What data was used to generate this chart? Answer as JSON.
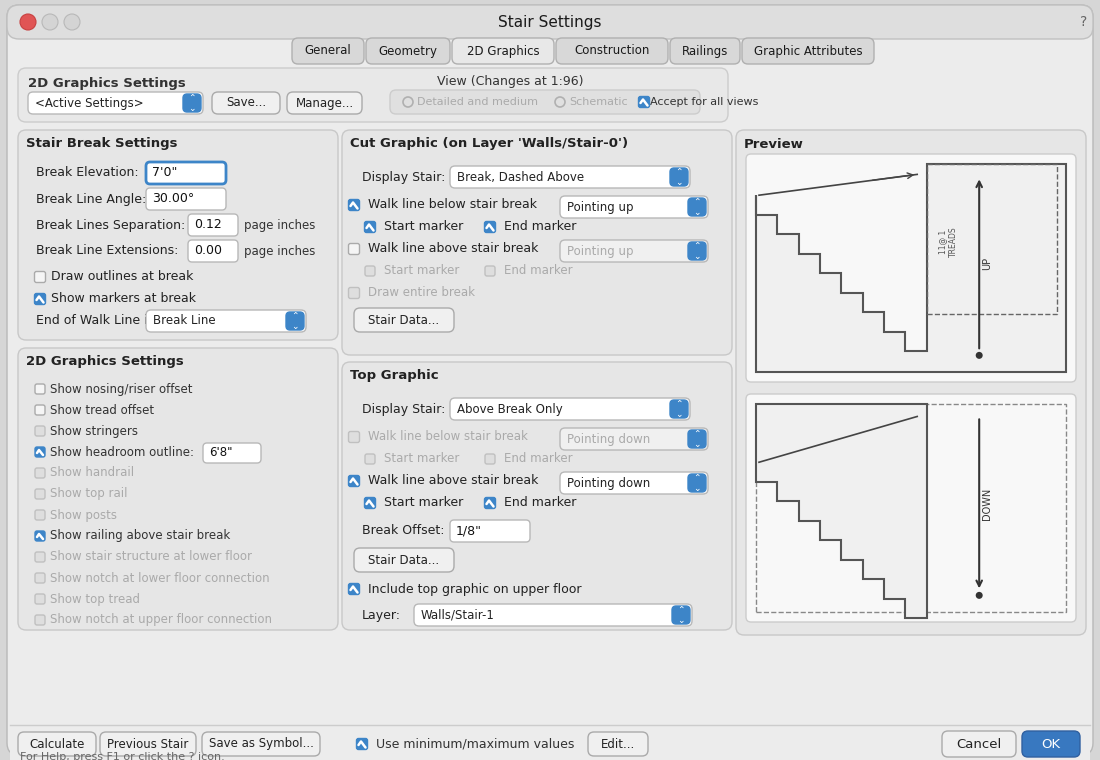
{
  "title": "Stair Settings",
  "bg_outer": "#d6d6d6",
  "bg_window": "#ececec",
  "bg_panel": "#e8e8e8",
  "bg_box": "#e2e2e2",
  "white": "#ffffff",
  "blue": "#3d85c8",
  "blue_btn": "#3878c0",
  "text_dark": "#111111",
  "text_med": "#444444",
  "text_gray": "#999999",
  "border": "#b0b0b0",
  "tabs": [
    "General",
    "Geometry",
    "2D Graphics",
    "Construction",
    "Railings",
    "Graphic Attributes"
  ],
  "active_tab": 2
}
